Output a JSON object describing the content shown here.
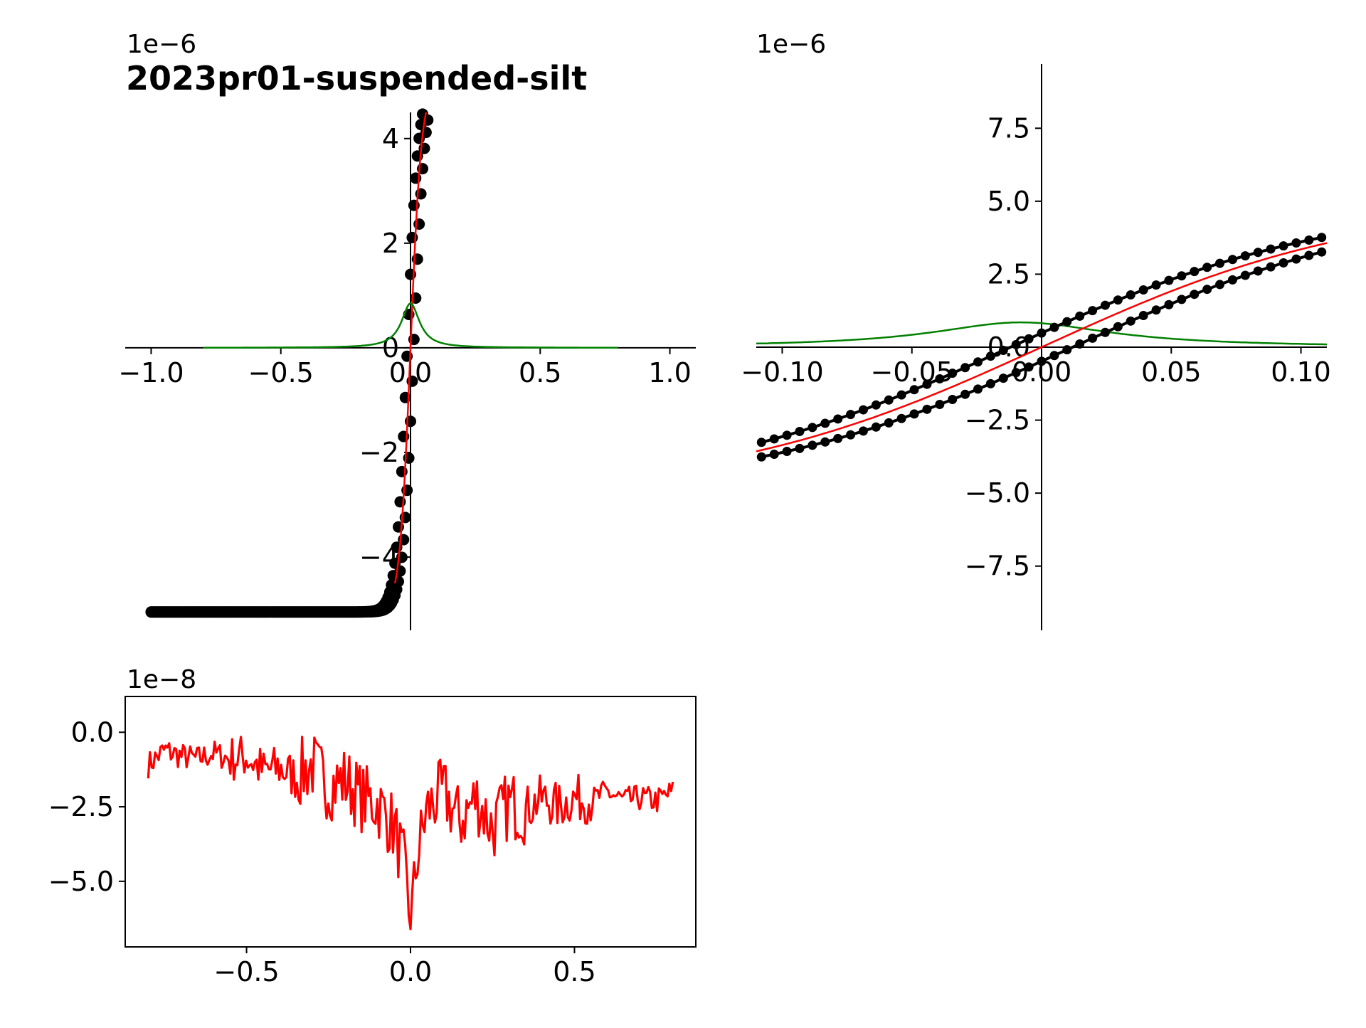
{
  "colors": {
    "data": "#000000",
    "fit": "#ff0000",
    "derivative": "#008000",
    "residual": "#ff0000"
  },
  "chart_data": [
    {
      "id": "main",
      "type": "scatter",
      "title": "2023pr01-suspended-silt",
      "y_multiplier": "1e−6",
      "xlim": [
        -1.1,
        1.1
      ],
      "ylim": [
        -5.4,
        4.5
      ],
      "xticks": [
        -1.0,
        -0.5,
        0.0,
        0.5,
        1.0
      ],
      "xtick_labels": [
        "−1.0",
        "−0.5",
        "0.0",
        "0.5",
        "1.0"
      ],
      "yticks": [
        -4,
        -2,
        0,
        2,
        4
      ],
      "ytick_labels": [
        "−4",
        "−2",
        "0",
        "2",
        "4"
      ],
      "axes_style": "spines crossing at origin",
      "series": [],
      "hysteresis": {
        "Ms": 5.05,
        "Mr": 0.8,
        "Hc": 0.012,
        "width": 0.042,
        "x_range": [
          -1.0,
          1.0
        ],
        "n_points": 300
      },
      "fit_curve": {
        "Ms": 5.05,
        "width": 0.042,
        "x_range": [
          -0.06,
          0.06
        ]
      },
      "derivative_curve": {
        "peak": 0.85,
        "width": 0.042,
        "x_range": [
          -0.8,
          0.8
        ]
      }
    },
    {
      "id": "zoom",
      "type": "scatter",
      "y_multiplier": "1e−6",
      "xlim": [
        -0.11,
        0.11
      ],
      "ylim": [
        -9.7,
        9.7
      ],
      "xticks": [
        -0.1,
        -0.05,
        0.0,
        0.05,
        0.1
      ],
      "xtick_labels": [
        "−0.10",
        "−0.05",
        "0.00",
        "0.05",
        "0.10"
      ],
      "yticks": [
        -7.5,
        -5.0,
        -2.5,
        0.0,
        2.5,
        5.0,
        7.5
      ],
      "ytick_labels": [
        "−7.5",
        "−5.0",
        "−2.5",
        "0.0",
        "2.5",
        "5.0",
        "7.5"
      ],
      "axes_style": "spines crossing at origin",
      "series": []
    },
    {
      "id": "residual",
      "type": "line",
      "y_multiplier": "1e−8",
      "xlim": [
        -0.87,
        0.87
      ],
      "ylim": [
        -7.2,
        1.2
      ],
      "xticks": [
        -0.5,
        0.0,
        0.5
      ],
      "xtick_labels": [
        "−0.5",
        "0.0",
        "0.5"
      ],
      "yticks": [
        -5.0,
        -2.5,
        0.0
      ],
      "ytick_labels": [
        "−5.0",
        "−2.5",
        "0.0"
      ],
      "axes_style": "boxed",
      "series": [
        {
          "x": [
            -0.8,
            -0.75,
            -0.7,
            -0.65,
            -0.6,
            -0.55,
            -0.5,
            -0.45,
            -0.4,
            -0.35,
            -0.3,
            -0.25,
            -0.2,
            -0.15,
            -0.1,
            -0.05,
            -0.02,
            0.0,
            0.02,
            0.05,
            0.1,
            0.15,
            0.2,
            0.25,
            0.3,
            0.35,
            0.4,
            0.45,
            0.5,
            0.55,
            0.6,
            0.65,
            0.7,
            0.75,
            0.8
          ],
          "y": [
            -1.1,
            -0.6,
            -0.8,
            -0.9,
            -0.7,
            -0.9,
            -0.8,
            -1.3,
            -1.2,
            -1.5,
            -1.1,
            -1.8,
            -1.6,
            -2.2,
            -2.4,
            -3.2,
            -4.5,
            -6.5,
            -4.2,
            -2.6,
            -2.0,
            -3.0,
            -2.2,
            -3.2,
            -2.4,
            -2.6,
            -2.2,
            -2.5,
            -2.2,
            -2.3,
            -2.0,
            -2.3,
            -2.2,
            -2.3,
            -2.0
          ]
        }
      ]
    }
  ]
}
